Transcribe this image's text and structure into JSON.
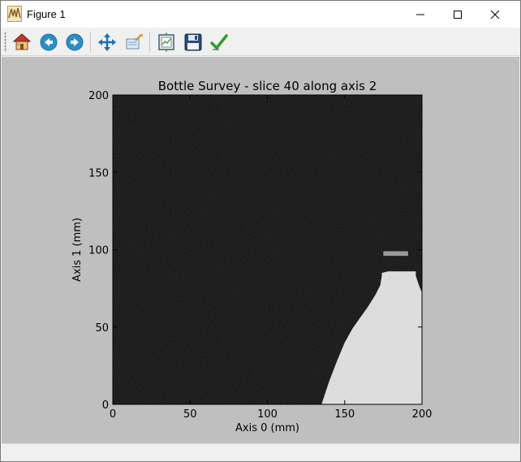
{
  "window": {
    "title": "Figure 1",
    "minimize_glyph": "—",
    "maximize_glyph": "☐",
    "close_glyph": "✕"
  },
  "toolbar": {
    "buttons": [
      {
        "name": "home-icon",
        "tooltip": ""
      },
      {
        "name": "back-arrow-icon",
        "tooltip": ""
      },
      {
        "name": "forward-arrow-icon",
        "tooltip": ""
      },
      {
        "name": "pan-move-icon",
        "tooltip": ""
      },
      {
        "name": "zoom-rect-icon",
        "tooltip": ""
      },
      {
        "name": "subplots-config-icon",
        "tooltip": ""
      },
      {
        "name": "save-floppy-icon",
        "tooltip": ""
      },
      {
        "name": "checkmark-icon",
        "tooltip": ""
      }
    ]
  },
  "status": {
    "text": ""
  },
  "colors": {
    "canvas_bg": "#bfbfbf",
    "image_bg": "#0a0a0a",
    "bottle": "#e4e4e4"
  },
  "chart_data": {
    "type": "heatmap",
    "title": "Bottle Survey - slice 40 along axis 2",
    "xlabel": "Axis 0 (mm)",
    "ylabel": "Axis 1 (mm)",
    "xlim": [
      0,
      200
    ],
    "ylim": [
      0,
      200
    ],
    "xticks": [
      0,
      50,
      100,
      150,
      200
    ],
    "yticks": [
      0,
      50,
      100,
      150,
      200
    ],
    "xtick_labels": [
      "0",
      "50",
      "100",
      "150",
      "200"
    ],
    "ytick_labels": [
      "0",
      "50",
      "100",
      "150",
      "200"
    ],
    "colormap": "gray",
    "bottle_outline": [
      [
        135,
        0
      ],
      [
        140,
        15
      ],
      [
        145,
        28
      ],
      [
        150,
        40
      ],
      [
        155,
        49
      ],
      [
        160,
        56
      ],
      [
        165,
        63
      ],
      [
        170,
        71
      ],
      [
        173,
        77
      ],
      [
        174,
        83
      ],
      [
        174,
        85
      ],
      [
        178,
        86
      ],
      [
        185,
        86
      ],
      [
        192,
        86
      ],
      [
        196,
        86
      ],
      [
        196,
        83
      ],
      [
        198,
        77
      ],
      [
        200,
        72
      ],
      [
        200,
        0
      ]
    ],
    "cap_band": {
      "x": [
        175,
        191
      ],
      "y": [
        96,
        99
      ]
    }
  }
}
